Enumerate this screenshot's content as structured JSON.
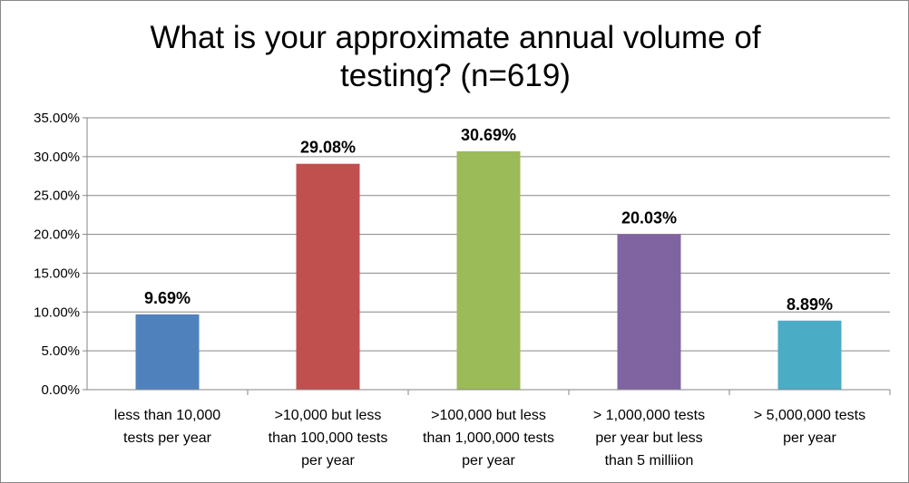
{
  "chart_data": {
    "type": "bar",
    "title_lines": [
      "What is your approximate annual volume of",
      "testing? (n=619)"
    ],
    "categories": [
      [
        "less than 10,000",
        "tests per year"
      ],
      [
        ">10,000 but less",
        "than 100,000 tests",
        "per year"
      ],
      [
        ">100,000 but less",
        "than 1,000,000 tests",
        "per year"
      ],
      [
        "> 1,000,000 tests",
        "per year but less",
        "than 5 milliion"
      ],
      [
        "> 5,000,000 tests",
        "per year"
      ]
    ],
    "values": [
      9.69,
      29.08,
      30.69,
      20.03,
      8.89
    ],
    "data_labels": [
      "9.69%",
      "29.08%",
      "30.69%",
      "20.03%",
      "8.89%"
    ],
    "colors": [
      "#4F81BD",
      "#C0504D",
      "#9BBB59",
      "#8064A2",
      "#4BACC6"
    ],
    "ylim": [
      0,
      35
    ],
    "yticks": [
      "0.00%",
      "5.00%",
      "10.00%",
      "15.00%",
      "20.00%",
      "25.00%",
      "30.00%",
      "35.00%"
    ],
    "grid": true,
    "legend": "none"
  }
}
